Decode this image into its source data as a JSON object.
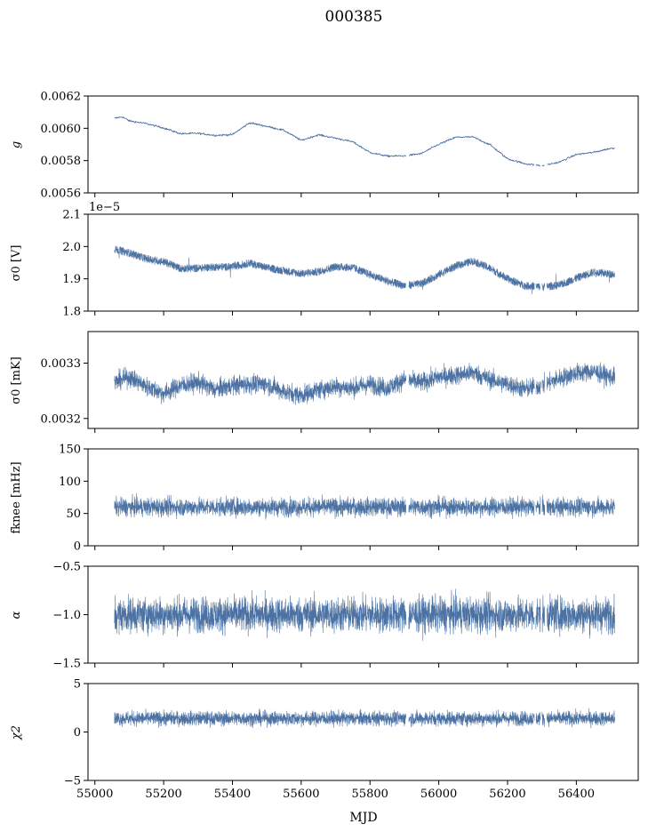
{
  "title": "000385",
  "chart_data": {
    "type": "line",
    "title": "000385",
    "xlabel": "MJD",
    "xlim": [
      54980,
      56580
    ],
    "xticks": [
      55000,
      55200,
      55400,
      55600,
      55800,
      56000,
      56200,
      56400
    ],
    "x_data_range": [
      55057,
      56512
    ],
    "gaps": [
      [
        55905,
        55912
      ],
      [
        56278,
        56282
      ],
      [
        56296,
        56300
      ],
      [
        56308,
        56314
      ]
    ],
    "series_color": "#4c72a4",
    "panels": [
      {
        "ylabel": "g",
        "ylim": [
          0.0056,
          0.0062
        ],
        "yticks": [
          0.0056,
          0.0058,
          0.006,
          0.0062
        ],
        "tick_labels": [
          "0.0056",
          "0.0058",
          "0.0060",
          "0.0062"
        ],
        "style": "thin",
        "points": [
          [
            55057,
            0.006062
          ],
          [
            55080,
            0.006071
          ],
          [
            55100,
            0.006046
          ],
          [
            55150,
            0.006029
          ],
          [
            55200,
            0.006002
          ],
          [
            55250,
            0.005966
          ],
          [
            55300,
            0.005969
          ],
          [
            55350,
            0.005956
          ],
          [
            55400,
            0.005961
          ],
          [
            55450,
            0.006034
          ],
          [
            55500,
            0.006012
          ],
          [
            55550,
            0.005987
          ],
          [
            55600,
            0.005925
          ],
          [
            55650,
            0.00596
          ],
          [
            55700,
            0.005939
          ],
          [
            55750,
            0.005916
          ],
          [
            55800,
            0.00585
          ],
          [
            55850,
            0.005828
          ],
          [
            55900,
            0.005829
          ],
          [
            55950,
            0.005844
          ],
          [
            56000,
            0.005901
          ],
          [
            56050,
            0.005945
          ],
          [
            56100,
            0.005946
          ],
          [
            56150,
            0.005897
          ],
          [
            56200,
            0.005811
          ],
          [
            56250,
            0.005781
          ],
          [
            56300,
            0.005768
          ],
          [
            56350,
            0.00579
          ],
          [
            56400,
            0.005838
          ],
          [
            56450,
            0.005851
          ],
          [
            56500,
            0.005876
          ]
        ]
      },
      {
        "ylabel": "σ0 [V]",
        "ylim": [
          1.8,
          2.1
        ],
        "yticks": [
          1.8,
          1.9,
          2.0,
          2.1
        ],
        "tick_labels": [
          "1.8",
          "1.9",
          "2.0",
          "2.1"
        ],
        "offset_text": "1e−5",
        "style": "band",
        "points": [
          [
            55057,
            1.992
          ],
          [
            55100,
            1.98
          ],
          [
            55150,
            1.962
          ],
          [
            55200,
            1.953
          ],
          [
            55250,
            1.932
          ],
          [
            55300,
            1.933
          ],
          [
            55350,
            1.937
          ],
          [
            55400,
            1.937
          ],
          [
            55450,
            1.949
          ],
          [
            55500,
            1.934
          ],
          [
            55550,
            1.925
          ],
          [
            55600,
            1.916
          ],
          [
            55650,
            1.922
          ],
          [
            55700,
            1.938
          ],
          [
            55750,
            1.935
          ],
          [
            55800,
            1.913
          ],
          [
            55850,
            1.893
          ],
          [
            55900,
            1.879
          ],
          [
            55950,
            1.885
          ],
          [
            56000,
            1.913
          ],
          [
            56050,
            1.94
          ],
          [
            56100,
            1.955
          ],
          [
            56150,
            1.932
          ],
          [
            56200,
            1.9
          ],
          [
            56250,
            1.879
          ],
          [
            56300,
            1.875
          ],
          [
            56350,
            1.88
          ],
          [
            56400,
            1.902
          ],
          [
            56450,
            1.921
          ],
          [
            56500,
            1.915
          ]
        ],
        "band_halfwidth": 0.012
      },
      {
        "ylabel": "σ0 [mK]",
        "ylim": [
          0.003182,
          0.003357
        ],
        "yticks": [
          0.0032,
          0.0033
        ],
        "tick_labels": [
          "0.0032",
          "0.0033"
        ],
        "style": "noisy",
        "points": [
          [
            55057,
            0.003265
          ],
          [
            55100,
            0.003275
          ],
          [
            55150,
            0.003258
          ],
          [
            55200,
            0.003245
          ],
          [
            55250,
            0.00326
          ],
          [
            55300,
            0.003265
          ],
          [
            55350,
            0.003252
          ],
          [
            55400,
            0.00326
          ],
          [
            55450,
            0.003262
          ],
          [
            55500,
            0.003262
          ],
          [
            55550,
            0.003248
          ],
          [
            55600,
            0.003242
          ],
          [
            55650,
            0.003252
          ],
          [
            55700,
            0.003258
          ],
          [
            55750,
            0.003255
          ],
          [
            55800,
            0.003262
          ],
          [
            55850,
            0.003255
          ],
          [
            55900,
            0.00327
          ],
          [
            55950,
            0.003265
          ],
          [
            56000,
            0.003275
          ],
          [
            56050,
            0.003278
          ],
          [
            56100,
            0.003283
          ],
          [
            56150,
            0.00327
          ],
          [
            56200,
            0.003262
          ],
          [
            56250,
            0.003253
          ],
          [
            56300,
            0.00326
          ],
          [
            56350,
            0.003272
          ],
          [
            56400,
            0.003282
          ],
          [
            56450,
            0.003285
          ],
          [
            56500,
            0.003275
          ]
        ],
        "noise_amplitude": 3e-05
      },
      {
        "ylabel": "fknee [mHz]",
        "ylim": [
          0,
          150
        ],
        "yticks": [
          0,
          50,
          100,
          150
        ],
        "tick_labels": [
          "0",
          "50",
          "100",
          "150"
        ],
        "style": "noisy",
        "mean": 60,
        "noise_amplitude": 25,
        "points": []
      },
      {
        "ylabel": "α",
        "ylim": [
          -1.5,
          -0.5
        ],
        "yticks": [
          -1.5,
          -1.0,
          -0.5
        ],
        "tick_labels": [
          "−1.5",
          "−1.0",
          "−0.5"
        ],
        "style": "noisy",
        "mean": -1.0,
        "noise_amplitude": 0.32,
        "points": []
      },
      {
        "ylabel": "χ2",
        "ylim": [
          -5,
          5
        ],
        "yticks": [
          -5,
          0,
          5
        ],
        "tick_labels": [
          "−5",
          "0",
          "5"
        ],
        "style": "noisy",
        "mean": 1.4,
        "noise_amplitude": 1.3,
        "points": []
      }
    ]
  }
}
